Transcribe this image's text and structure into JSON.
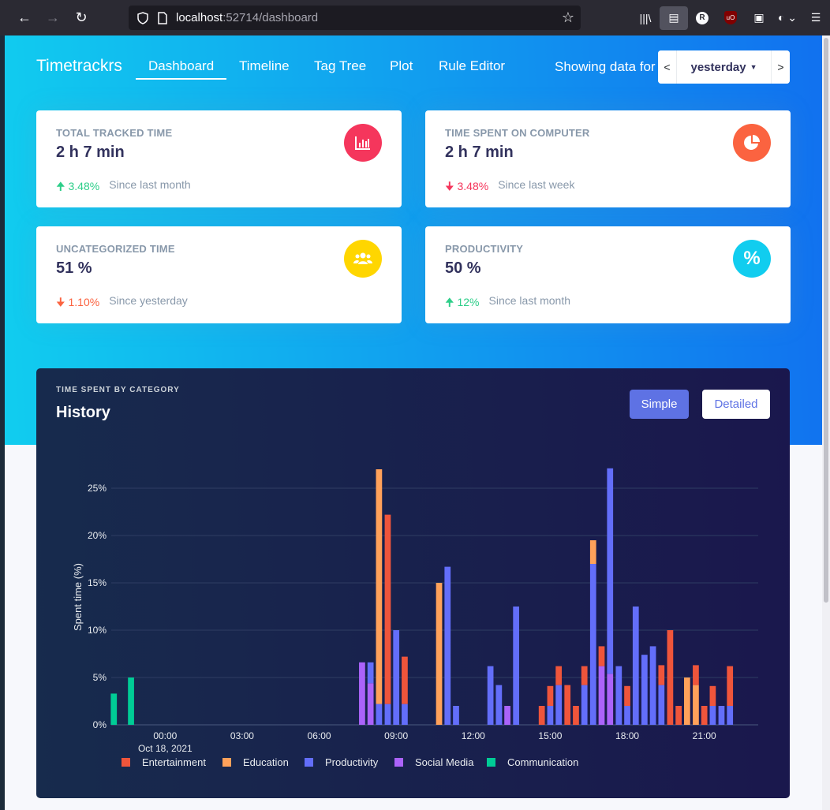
{
  "browser": {
    "url_host": "localhost",
    "url_rest": ":52714/dashboard"
  },
  "app": {
    "brand": "Timetrackrs",
    "nav": [
      {
        "label": "Dashboard"
      },
      {
        "label": "Timeline"
      },
      {
        "label": "Tag Tree"
      },
      {
        "label": "Plot"
      },
      {
        "label": "Rule Editor"
      }
    ],
    "showing_label": "Showing data for",
    "date": {
      "prev": "<",
      "selected": "yesterday",
      "next": ">"
    }
  },
  "cards": [
    {
      "label": "TOTAL TRACKED TIME",
      "value": "2 h 7 min",
      "delta": "3.48%",
      "direction": "up",
      "since": "Since last month",
      "icon": "chart-bar-icon",
      "icon_color": "#f5365c"
    },
    {
      "label": "TIME SPENT ON COMPUTER",
      "value": "2 h 7 min",
      "delta": "3.48%",
      "direction": "down",
      "since": "Since last week",
      "icon": "chart-pie-icon",
      "icon_color": "#fb6340"
    },
    {
      "label": "UNCATEGORIZED TIME",
      "value": "51 %",
      "delta": "1.10%",
      "direction": "down",
      "since": "Since yesterday",
      "icon": "users-icon",
      "icon_color": "#ffd600"
    },
    {
      "label": "PRODUCTIVITY",
      "value": "50 %",
      "delta": "12%",
      "direction": "up",
      "since": "Since last month",
      "icon": "percent-icon",
      "icon_color": "#11cdef"
    }
  ],
  "history": {
    "eyebrow": "TIME SPENT BY CATEGORY",
    "title": "History",
    "btn_simple": "Simple",
    "btn_detailed": "Detailed"
  },
  "colors": {
    "Entertainment": "#ef553b",
    "Education": "#ffa15a",
    "Productivity": "#636efa",
    "Social Media": "#ab63fa",
    "Communication": "#00cc96"
  },
  "chart_data": {
    "type": "bar",
    "stacked": true,
    "title": "History",
    "ylabel": "Spent time (%)",
    "xlabel": "",
    "ylim": [
      0,
      27
    ],
    "yticks": [
      0,
      5,
      10,
      15,
      20,
      25
    ],
    "ytick_labels": [
      "0%",
      "5%",
      "10%",
      "15%",
      "20%",
      "25%"
    ],
    "x_unit": "hours since Oct 18, 2021 00:00",
    "xlim": [
      -2.1,
      23.1
    ],
    "xticks": [
      0,
      3,
      6,
      9,
      12,
      15,
      18,
      21
    ],
    "xtick_labels": [
      "00:00",
      "03:00",
      "06:00",
      "09:00",
      "12:00",
      "15:00",
      "18:00",
      "21:00"
    ],
    "x_sublabel": "Oct 18, 2021",
    "bar_width_hours": 0.25,
    "series_order": [
      "Communication",
      "Social Media",
      "Productivity",
      "Education",
      "Entertainment"
    ],
    "bars": [
      {
        "x": -2.0,
        "Communication": 3.3
      },
      {
        "x": -1.33,
        "Communication": 5.0
      },
      {
        "x": 7.67,
        "Social Media": 6.6
      },
      {
        "x": 8.0,
        "Social Media": 4.4,
        "Productivity": 2.2
      },
      {
        "x": 8.33,
        "Productivity": 2.2,
        "Education": 24.8
      },
      {
        "x": 8.67,
        "Productivity": 2.2,
        "Entertainment": 20.0
      },
      {
        "x": 9.0,
        "Productivity": 10.0
      },
      {
        "x": 9.33,
        "Productivity": 2.2,
        "Entertainment": 5.0
      },
      {
        "x": 10.67,
        "Education": 15.0
      },
      {
        "x": 11.0,
        "Productivity": 16.7
      },
      {
        "x": 11.33,
        "Productivity": 2.0
      },
      {
        "x": 12.67,
        "Productivity": 6.2
      },
      {
        "x": 13.0,
        "Productivity": 2.0,
        "Entertainment": 0
      },
      {
        "x": 13.0,
        "Productivity": 4.2
      },
      {
        "x": 13.33,
        "Social Media": 2.0
      },
      {
        "x": 13.67,
        "Productivity": 12.5
      },
      {
        "x": 14.67,
        "Entertainment": 2.0
      },
      {
        "x": 15.0,
        "Productivity": 2.0,
        "Entertainment": 2.1
      },
      {
        "x": 15.33,
        "Productivity": 4.2,
        "Entertainment": 2.0
      },
      {
        "x": 15.67,
        "Entertainment": 4.2
      },
      {
        "x": 16.0,
        "Entertainment": 2.0
      },
      {
        "x": 16.33,
        "Productivity": 4.2,
        "Entertainment": 2.0
      },
      {
        "x": 16.67,
        "Productivity": 17.0,
        "Education": 2.5
      },
      {
        "x": 17.0,
        "Social Media": 6.2,
        "Entertainment": 2.1
      },
      {
        "x": 17.33,
        "Social Media": 5.4,
        "Productivity": 21.7
      },
      {
        "x": 17.67,
        "Productivity": 6.2
      },
      {
        "x": 18.0,
        "Productivity": 2.0,
        "Entertainment": 2.1
      },
      {
        "x": 18.33,
        "Productivity": 12.5
      },
      {
        "x": 18.67,
        "Productivity": 7.4
      },
      {
        "x": 19.0,
        "Productivity": 8.3
      },
      {
        "x": 19.33,
        "Productivity": 4.2,
        "Entertainment": 2.1
      },
      {
        "x": 19.67,
        "Entertainment": 10.0
      },
      {
        "x": 20.0,
        "Entertainment": 2.0
      },
      {
        "x": 20.33,
        "Education": 5.0
      },
      {
        "x": 20.67,
        "Education": 4.2,
        "Entertainment": 2.1
      },
      {
        "x": 21.0,
        "Entertainment": 2.0
      },
      {
        "x": 21.33,
        "Productivity": 2.0,
        "Entertainment": 2.1
      },
      {
        "x": 21.67,
        "Productivity": 2.0
      },
      {
        "x": 22.0,
        "Productivity": 2.0,
        "Entertainment": 4.2
      }
    ],
    "legend": [
      "Entertainment",
      "Education",
      "Productivity",
      "Social Media",
      "Communication"
    ],
    "legend_position": "bottom-left"
  }
}
